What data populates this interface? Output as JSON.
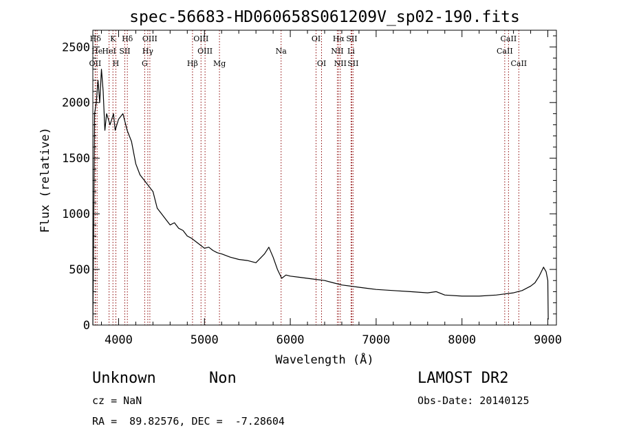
{
  "chart_data": {
    "type": "line",
    "title": "spec-56683-HD060658S061209V_sp02-190.fits",
    "xlabel": "Wavelength (Å)",
    "ylabel": "Flux (relative)",
    "xlim": [
      3700,
      9100
    ],
    "ylim": [
      0,
      2650
    ],
    "x_ticks": [
      4000,
      5000,
      6000,
      7000,
      8000,
      9000
    ],
    "x_tick_labels": [
      "4000",
      "5000",
      "6000",
      "7000",
      "8000",
      "9000"
    ],
    "y_ticks": [
      0,
      500,
      1000,
      1500,
      2000,
      2500
    ],
    "y_tick_labels": [
      "0",
      "500",
      "1000",
      "1500",
      "2000",
      "2500"
    ],
    "grid": false,
    "line_color": "#000000",
    "marker_color": "#8b0000",
    "spectrum": {
      "name": "Flux",
      "x": [
        3700,
        3720,
        3740,
        3760,
        3780,
        3800,
        3820,
        3840,
        3860,
        3880,
        3900,
        3920,
        3940,
        3960,
        3980,
        4000,
        4050,
        4100,
        4150,
        4200,
        4250,
        4300,
        4350,
        4400,
        4450,
        4500,
        4550,
        4600,
        4650,
        4700,
        4750,
        4800,
        4850,
        4900,
        4950,
        5000,
        5050,
        5100,
        5150,
        5200,
        5300,
        5400,
        5500,
        5600,
        5700,
        5750,
        5800,
        5850,
        5900,
        5950,
        6000,
        6100,
        6200,
        6300,
        6400,
        6500,
        6600,
        6700,
        6800,
        6900,
        7000,
        7200,
        7400,
        7600,
        7700,
        7800,
        8000,
        8200,
        8400,
        8500,
        8600,
        8700,
        8800,
        8850,
        8900,
        8950,
        8980,
        9000,
        9005
      ],
      "y": [
        0,
        1900,
        2000,
        2200,
        2000,
        2300,
        2100,
        1750,
        1900,
        1850,
        1800,
        1850,
        1900,
        1750,
        1800,
        1850,
        1900,
        1750,
        1650,
        1450,
        1350,
        1300,
        1250,
        1200,
        1050,
        1000,
        950,
        900,
        920,
        870,
        850,
        800,
        780,
        750,
        720,
        690,
        700,
        670,
        650,
        640,
        610,
        590,
        580,
        560,
        640,
        700,
        610,
        500,
        420,
        450,
        440,
        430,
        420,
        410,
        400,
        380,
        360,
        350,
        340,
        330,
        320,
        310,
        300,
        290,
        300,
        270,
        260,
        260,
        270,
        280,
        290,
        310,
        350,
        380,
        440,
        520,
        480,
        400,
        50
      ]
    },
    "line_markers": [
      {
        "label": "Hδ",
        "x": 3730,
        "row": 0
      },
      {
        "label": "K",
        "x": 3934,
        "row": 0
      },
      {
        "label": "Hδ",
        "x": 4102,
        "row": 0
      },
      {
        "label": "OIII",
        "x": 4364,
        "row": 0
      },
      {
        "label": "OIII",
        "x": 4960,
        "row": 0
      },
      {
        "label": "OI",
        "x": 6300,
        "row": 0
      },
      {
        "label": "Hα",
        "x": 6563,
        "row": 0
      },
      {
        "label": "SII",
        "x": 6716,
        "row": 0
      },
      {
        "label": "CaII",
        "x": 8542,
        "row": 0
      },
      {
        "label": "He",
        "x": 3750,
        "row": 1
      },
      {
        "label": "HeI",
        "x": 3889,
        "row": 1
      },
      {
        "label": "SII",
        "x": 4072,
        "row": 1
      },
      {
        "label": "Hγ",
        "x": 4340,
        "row": 1
      },
      {
        "label": "OIII",
        "x": 5007,
        "row": 1
      },
      {
        "label": "Na",
        "x": 5893,
        "row": 1
      },
      {
        "label": "NII",
        "x": 6548,
        "row": 1
      },
      {
        "label": "Li",
        "x": 6708,
        "row": 1
      },
      {
        "label": "CaII",
        "x": 8498,
        "row": 1
      },
      {
        "label": "OII",
        "x": 3727,
        "row": 2
      },
      {
        "label": "H",
        "x": 3968,
        "row": 2
      },
      {
        "label": "G",
        "x": 4304,
        "row": 2
      },
      {
        "label": "Hβ",
        "x": 4861,
        "row": 2
      },
      {
        "label": "Mg",
        "x": 5175,
        "row": 2
      },
      {
        "label": "OI",
        "x": 6364,
        "row": 2
      },
      {
        "label": "NII",
        "x": 6583,
        "row": 2
      },
      {
        "label": "SII",
        "x": 6731,
        "row": 2
      },
      {
        "label": "CaII",
        "x": 8662,
        "row": 2
      }
    ]
  },
  "info": {
    "classification": "Unknown",
    "subclass": "Non",
    "survey": "LAMOST DR2",
    "cz": "cz = NaN",
    "obs_date": "Obs-Date: 20140125",
    "radec": "RA =  89.82576, DEC =  -7.28604"
  }
}
